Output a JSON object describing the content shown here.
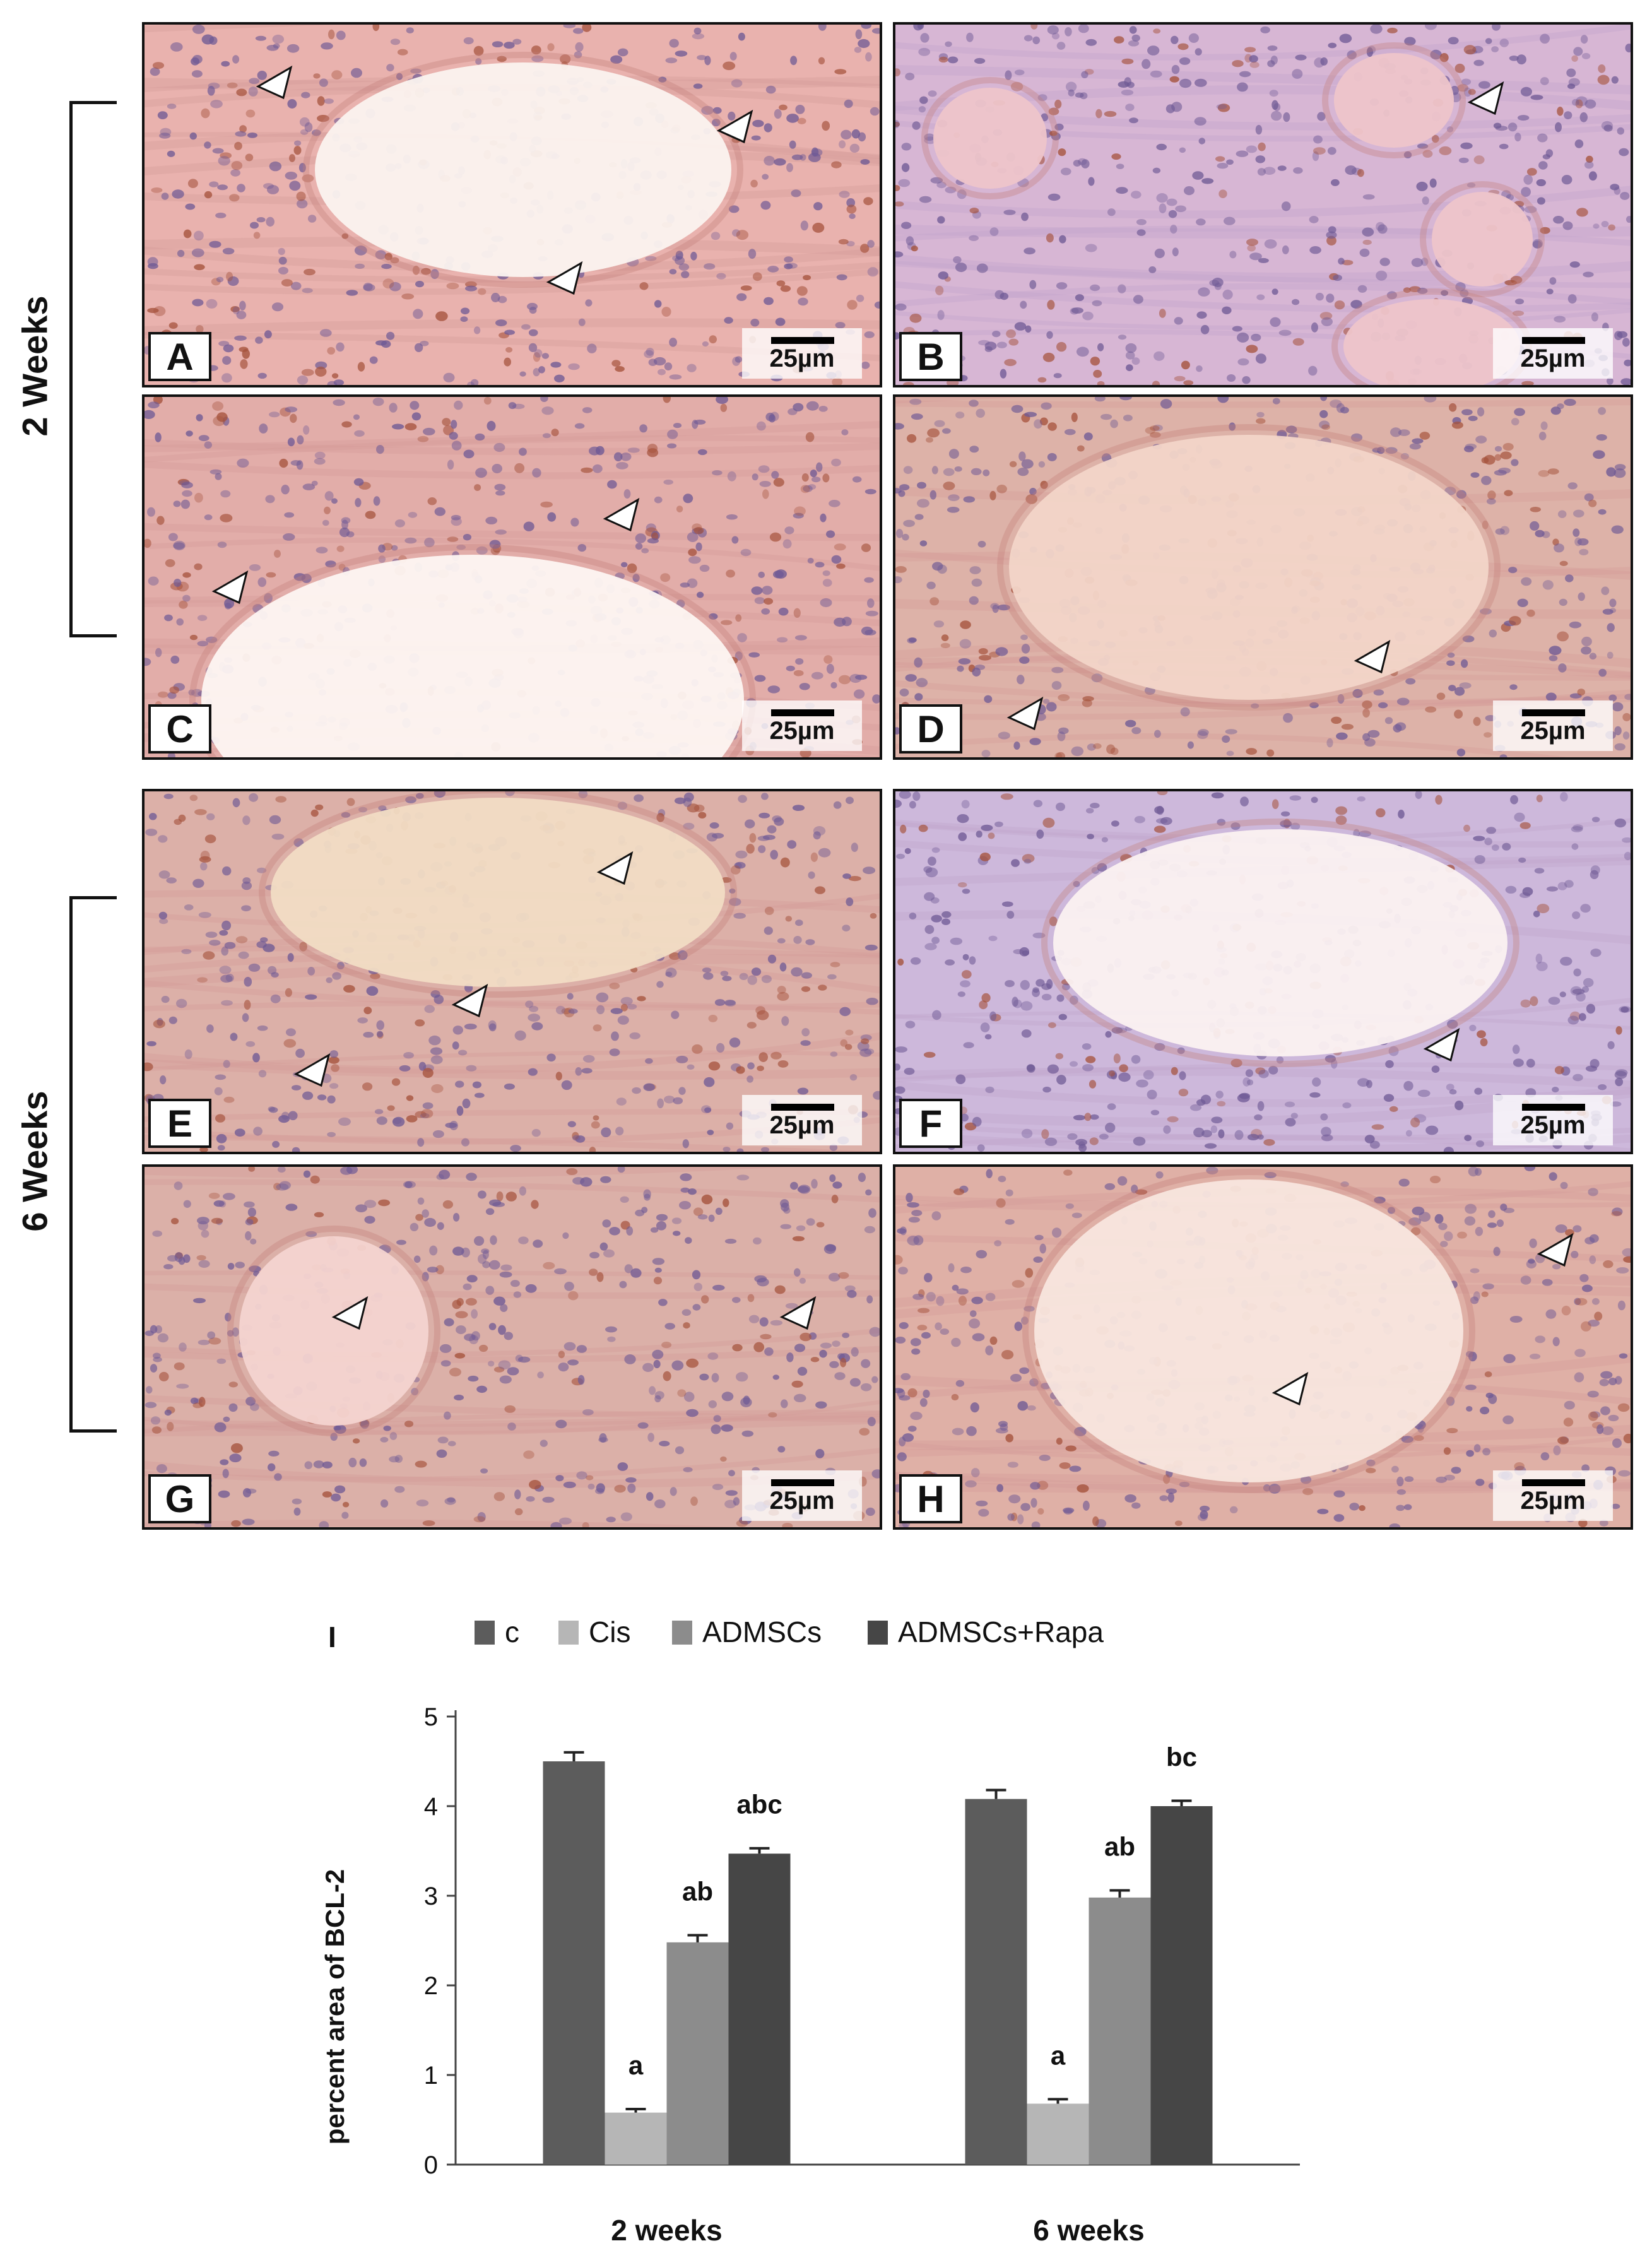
{
  "groups": [
    {
      "label": "2 Weeks",
      "panels": [
        "A",
        "B",
        "C",
        "D"
      ]
    },
    {
      "label": "6 Weeks",
      "panels": [
        "E",
        "F",
        "G",
        "H"
      ]
    }
  ],
  "panels": [
    {
      "letter": "A",
      "scale": "25µm",
      "tint": "#e9b2ae",
      "core": "#fbf3ef"
    },
    {
      "letter": "B",
      "scale": "25µm",
      "tint": "#d7b6d4",
      "core": "#eec5ca"
    },
    {
      "letter": "C",
      "scale": "25µm",
      "tint": "#e2ada9",
      "core": "#fdf6f2"
    },
    {
      "letter": "D",
      "scale": "25µm",
      "tint": "#ddb2a8",
      "core": "#f2d5c8"
    },
    {
      "letter": "E",
      "scale": "25µm",
      "tint": "#dcb0a8",
      "core": "#f1dcc4"
    },
    {
      "letter": "F",
      "scale": "25µm",
      "tint": "#cdb8db",
      "core": "#fbf1f1"
    },
    {
      "letter": "G",
      "scale": "25µm",
      "tint": "#dbb0a8",
      "core": "#f4d4d0"
    },
    {
      "letter": "H",
      "scale": "25µm",
      "tint": "#dfb0a6",
      "core": "#f8e6de"
    }
  ],
  "colors": {
    "c": "#5c5c5c",
    "Cis": "#b6b6b6",
    "ADMSCs": "#8c8c8c",
    "ADMSCs+Rapa": "#464646",
    "hematoxylin": "#6f5a95",
    "dab": "#a5523c"
  },
  "chart_data": {
    "type": "bar",
    "panel_label": "I",
    "categories": [
      "2 weeks",
      "6 weeks"
    ],
    "series": [
      {
        "name": "c",
        "values": [
          4.5,
          4.08
        ],
        "errors": [
          0.1,
          0.1
        ],
        "labels": [
          "",
          ""
        ]
      },
      {
        "name": "Cis",
        "values": [
          0.58,
          0.68
        ],
        "errors": [
          0.04,
          0.05
        ],
        "labels": [
          "a",
          "a"
        ]
      },
      {
        "name": "ADMSCs",
        "values": [
          2.48,
          2.98
        ],
        "errors": [
          0.08,
          0.08
        ],
        "labels": [
          "ab",
          "ab"
        ]
      },
      {
        "name": "ADMSCs+Rapa",
        "values": [
          3.47,
          4.0
        ],
        "errors": [
          0.06,
          0.06
        ],
        "labels": [
          "abc",
          "bc"
        ]
      }
    ],
    "title": "",
    "xlabel": "",
    "ylabel": "percent  area of BCL-2",
    "ylim": [
      0,
      5
    ],
    "yticks": [
      "0",
      "1",
      "2",
      "3",
      "4",
      "5"
    ],
    "legend": "top",
    "grid": false
  }
}
